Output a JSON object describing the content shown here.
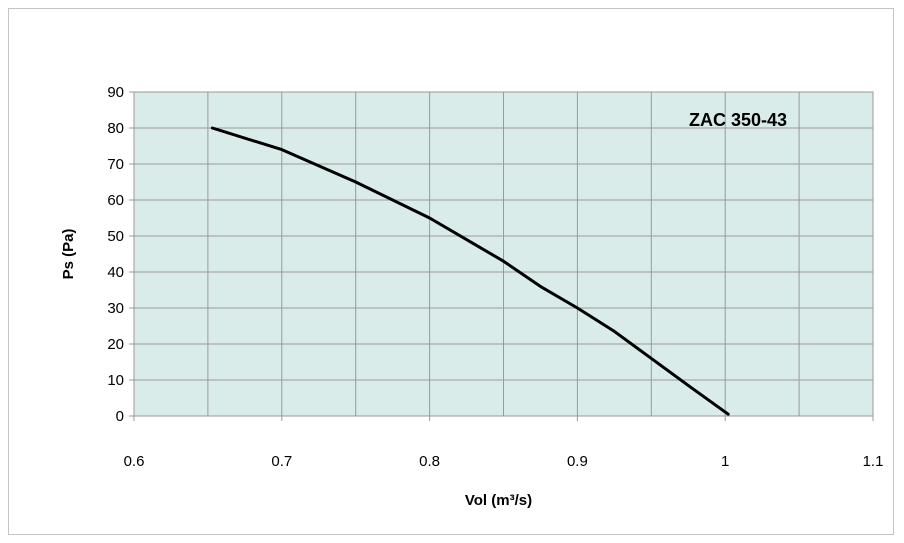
{
  "chart_data": {
    "type": "line",
    "title": "ZAC 350-43",
    "xlabel": "Vol (m³/s)",
    "ylabel": "Ps (Pa)",
    "xlim": [
      0.6,
      1.1
    ],
    "ylim": [
      0,
      90
    ],
    "x_ticks": [
      "0.6",
      "0.7",
      "0.8",
      "0.9",
      "1",
      "1.1"
    ],
    "y_ticks": [
      "0",
      "10",
      "20",
      "30",
      "40",
      "50",
      "60",
      "70",
      "80",
      "90"
    ],
    "x_tick_values": [
      0.6,
      0.7,
      0.8,
      0.9,
      1.0,
      1.1
    ],
    "y_tick_values": [
      0,
      10,
      20,
      30,
      40,
      50,
      60,
      70,
      80,
      90
    ],
    "x_minor_gridlines": [
      0.65,
      0.75,
      0.85,
      0.95,
      1.05
    ],
    "grid": true,
    "series": [
      {
        "x": [
          0.653,
          0.7,
          0.75,
          0.8,
          0.825,
          0.85,
          0.875,
          0.9,
          0.925,
          0.95,
          0.975,
          1.002
        ],
        "y": [
          80,
          74,
          65,
          55,
          49,
          43,
          36,
          30,
          23.5,
          16,
          8.5,
          0.5
        ]
      }
    ],
    "colors": {
      "plot_bg": "#d9ece9",
      "grid": "#9a9a9a",
      "line": "#000000"
    }
  }
}
